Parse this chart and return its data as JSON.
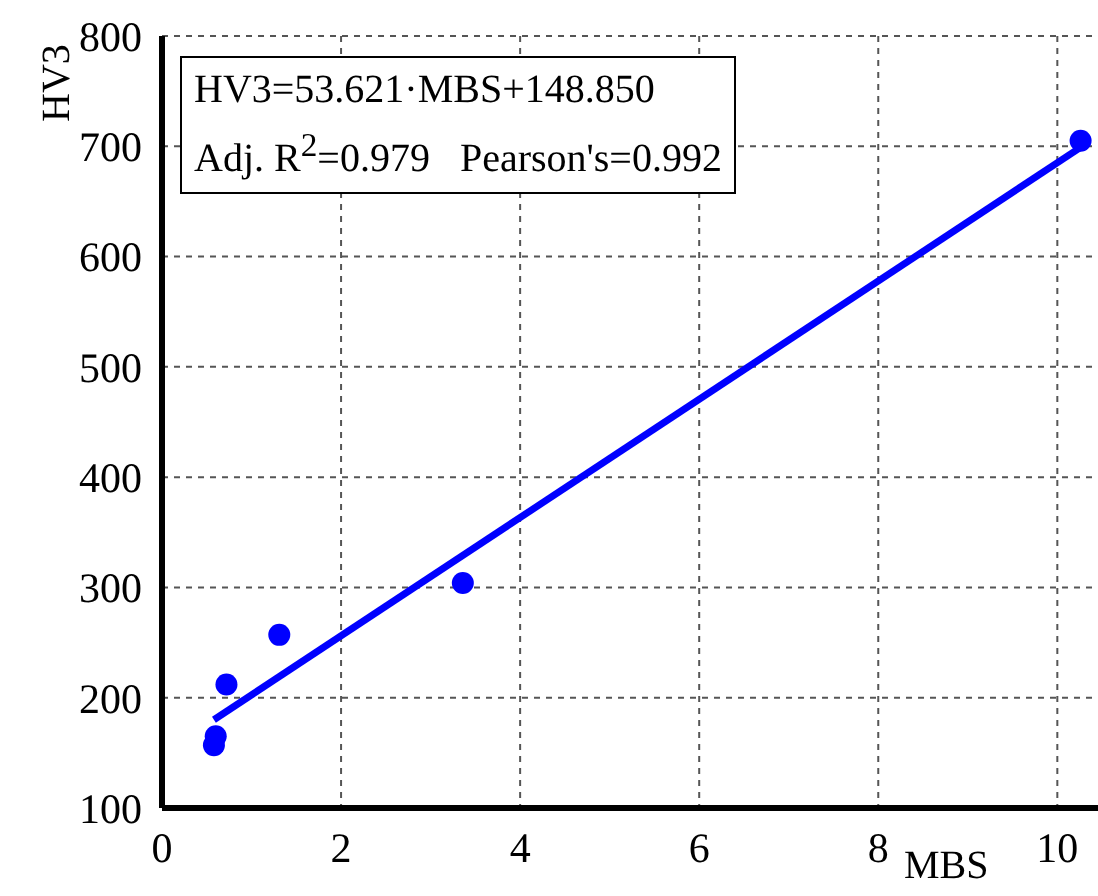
{
  "chart_data": {
    "type": "scatter",
    "xlabel": "MBS",
    "ylabel": "HV3",
    "annotations": [
      "HV3=53.621·MBS+148.850",
      "Adj. R$^{2}$=0.979   Pearson's=0.992"
    ],
    "series": [
      {
        "color": "#0000ff",
        "marker": "circle",
        "x": [
          0.58,
          0.6,
          0.72,
          1.31,
          3.36,
          10.26
        ],
        "values": [
          157,
          165,
          212,
          257,
          304,
          705
        ]
      },
      {
        "type": "line",
        "color": "#0000ff",
        "marker": "none",
        "x": [
          0.58,
          10.26
        ],
        "values": [
          180,
          699
        ]
      }
    ],
    "xlim": [
      0,
      10.7
    ],
    "xticks": [
      0,
      2,
      4,
      6,
      8,
      10
    ],
    "ylim": [
      100,
      800
    ],
    "yticks": [
      100,
      200,
      300,
      400,
      500,
      600,
      700,
      800
    ],
    "grid": true,
    "legend": false
  }
}
